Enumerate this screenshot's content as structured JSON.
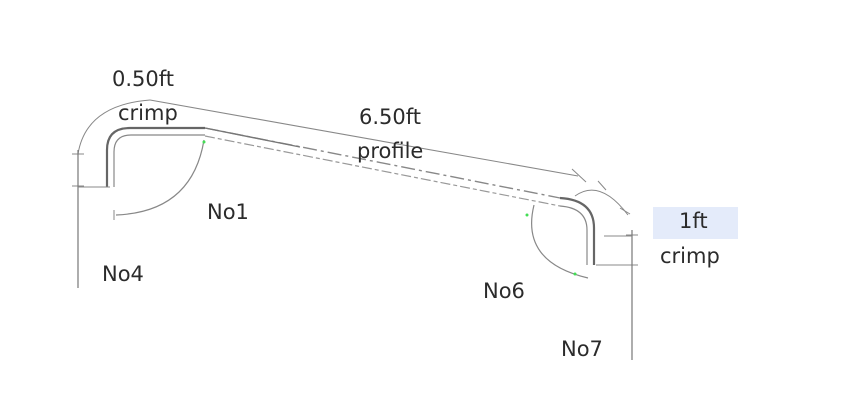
{
  "labels": {
    "crimp_left_length": "0.50ft",
    "crimp_left_word": "crimp",
    "profile_length": "6.50ft",
    "profile_word": "profile",
    "crimp_right_length": "1ft",
    "crimp_right_word": "crimp",
    "no1": "No1",
    "no4": "No4",
    "no6": "No6",
    "no7": "No7"
  },
  "colors": {
    "line": "#777777",
    "text": "#2b2b2b",
    "highlight": "#e4ebfa",
    "mark": "#44dd55"
  }
}
